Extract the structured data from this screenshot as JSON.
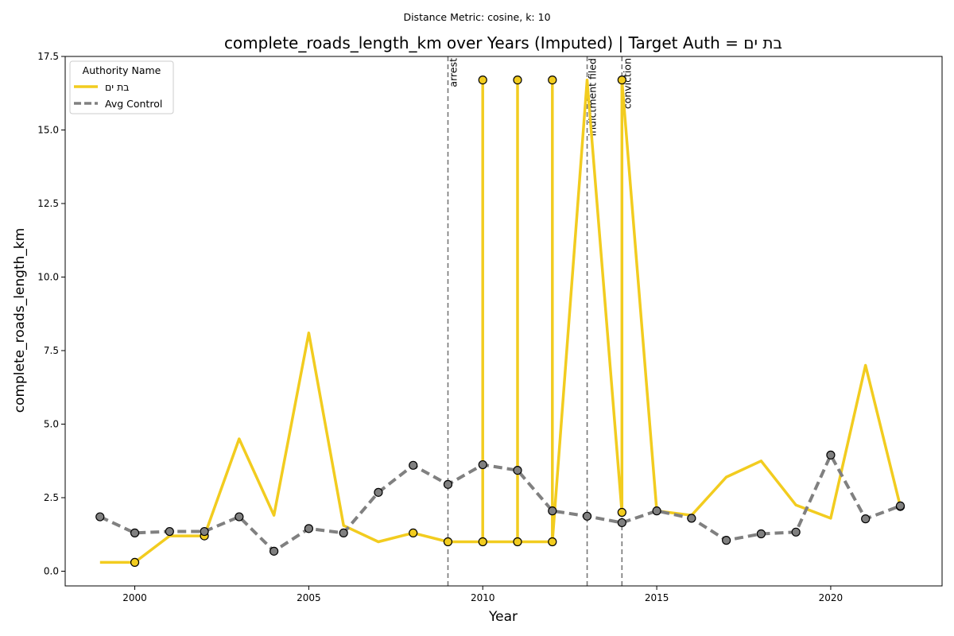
{
  "chart_data": {
    "type": "line",
    "suptitle": "Distance Metric: cosine, k: 10",
    "title": "complete_roads_length_km over Years (Imputed) | Target Auth = בת ים",
    "xlabel": "Year",
    "ylabel": "complete_roads_length_km",
    "xlim": [
      1998,
      2023.2
    ],
    "ylim": [
      -0.5,
      17.5
    ],
    "x_ticks": [
      "2000",
      "2005",
      "2010",
      "2015",
      "2020"
    ],
    "x_tick_values": [
      2000,
      2005,
      2010,
      2015,
      2020
    ],
    "y_ticks": [
      "0.0",
      "2.5",
      "5.0",
      "7.5",
      "10.0",
      "12.5",
      "15.0",
      "17.5"
    ],
    "y_tick_values": [
      0,
      2.5,
      5,
      7.5,
      10,
      12.5,
      15,
      17.5
    ],
    "grid": false,
    "legend": {
      "title": "Authority Name",
      "placement": "upper-left",
      "entries": [
        "בת ים",
        "Avg Control"
      ]
    },
    "events": [
      {
        "x": 2009,
        "label": "arrest"
      },
      {
        "x": 2013,
        "label": "indictment filed"
      },
      {
        "x": 2014,
        "label": "conviction"
      }
    ],
    "series": [
      {
        "name": "בת ים",
        "color": "#f2cc1f",
        "style": "solid",
        "points": [
          [
            1999,
            0.3
          ],
          [
            2000,
            0.3
          ],
          [
            2001,
            1.2
          ],
          [
            2002,
            1.2
          ],
          [
            2003,
            4.5
          ],
          [
            2004,
            1.9
          ],
          [
            2005,
            8.1
          ],
          [
            2006,
            1.55
          ],
          [
            2007,
            1.0
          ],
          [
            2008,
            1.3
          ],
          [
            2009,
            1.0
          ],
          [
            2010,
            1.0
          ],
          [
            2010,
            16.7
          ],
          [
            2010,
            1.0
          ],
          [
            2011,
            1.0
          ],
          [
            2011,
            16.7
          ],
          [
            2011,
            1.0
          ],
          [
            2012,
            1.0
          ],
          [
            2012,
            16.7
          ],
          [
            2012,
            1.0
          ],
          [
            2013,
            16.7
          ],
          [
            2014,
            2.0
          ],
          [
            2014,
            16.7
          ],
          [
            2015,
            2.05
          ],
          [
            2016,
            1.9
          ],
          [
            2017,
            3.2
          ],
          [
            2018,
            3.75
          ],
          [
            2019,
            2.25
          ],
          [
            2020,
            1.8
          ],
          [
            2021,
            7.0
          ],
          [
            2022,
            2.2
          ]
        ],
        "markers": [
          [
            2000,
            0.3
          ],
          [
            2002,
            1.2
          ],
          [
            2008,
            1.3
          ],
          [
            2009,
            1.0
          ],
          [
            2010,
            1.0
          ],
          [
            2010,
            16.7
          ],
          [
            2011,
            1.0
          ],
          [
            2011,
            16.7
          ],
          [
            2012,
            1.0
          ],
          [
            2012,
            16.7
          ],
          [
            2014,
            2.0
          ],
          [
            2014,
            16.7
          ],
          [
            2022,
            2.2
          ]
        ]
      },
      {
        "name": "Avg Control",
        "color": "#808080",
        "style": "dashed",
        "points": [
          [
            1999,
            1.85
          ],
          [
            2000,
            1.3
          ],
          [
            2001,
            1.35
          ],
          [
            2002,
            1.35
          ],
          [
            2003,
            1.85
          ],
          [
            2004,
            0.68
          ],
          [
            2005,
            1.45
          ],
          [
            2006,
            1.3
          ],
          [
            2007,
            2.68
          ],
          [
            2008,
            3.6
          ],
          [
            2009,
            2.95
          ],
          [
            2010,
            3.62
          ],
          [
            2011,
            3.43
          ],
          [
            2012,
            2.05
          ],
          [
            2013,
            1.87
          ],
          [
            2014,
            1.65
          ],
          [
            2015,
            2.05
          ],
          [
            2016,
            1.8
          ],
          [
            2017,
            1.05
          ],
          [
            2018,
            1.27
          ],
          [
            2019,
            1.33
          ],
          [
            2020,
            3.95
          ],
          [
            2021,
            1.78
          ],
          [
            2022,
            2.22
          ]
        ],
        "markers": [
          [
            1999,
            1.85
          ],
          [
            2000,
            1.3
          ],
          [
            2001,
            1.35
          ],
          [
            2002,
            1.35
          ],
          [
            2003,
            1.85
          ],
          [
            2004,
            0.68
          ],
          [
            2005,
            1.45
          ],
          [
            2006,
            1.3
          ],
          [
            2007,
            2.68
          ],
          [
            2008,
            3.6
          ],
          [
            2009,
            2.95
          ],
          [
            2010,
            3.62
          ],
          [
            2011,
            3.43
          ],
          [
            2012,
            2.05
          ],
          [
            2013,
            1.87
          ],
          [
            2014,
            1.65
          ],
          [
            2015,
            2.05
          ],
          [
            2016,
            1.8
          ],
          [
            2017,
            1.05
          ],
          [
            2018,
            1.27
          ],
          [
            2019,
            1.33
          ],
          [
            2020,
            3.95
          ],
          [
            2021,
            1.78
          ],
          [
            2022,
            2.22
          ]
        ]
      }
    ]
  }
}
